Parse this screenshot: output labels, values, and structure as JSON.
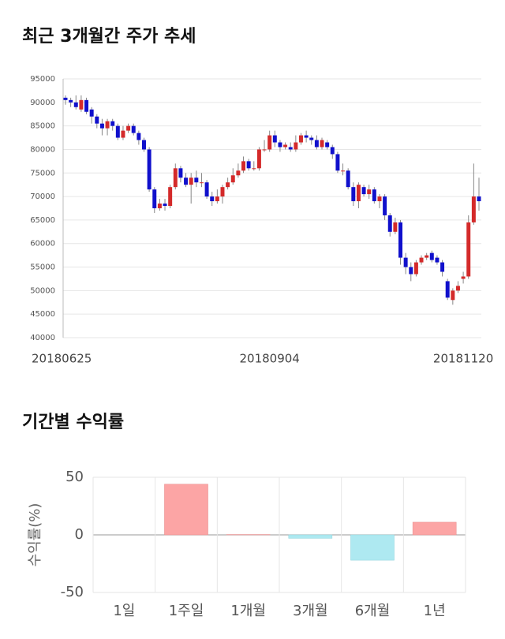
{
  "chart_data": [
    {
      "type": "candlestick",
      "title": "최근 3개월간 주가 추세",
      "categories": [
        "20180625",
        null,
        null,
        null,
        null,
        null,
        null,
        null,
        null,
        null,
        null,
        null,
        null,
        null,
        null,
        null,
        null,
        null,
        null,
        null,
        null,
        null,
        null,
        null,
        null,
        null,
        null,
        null,
        null,
        null,
        null,
        null,
        null,
        null,
        null,
        null,
        null,
        null,
        null,
        "20180904",
        null,
        null,
        null,
        null,
        null,
        null,
        null,
        null,
        null,
        null,
        null,
        null,
        null,
        null,
        null,
        null,
        null,
        null,
        null,
        null,
        null,
        null,
        null,
        null,
        null,
        null,
        null,
        null,
        null,
        null,
        null,
        null,
        null,
        null,
        null,
        null,
        "20181120",
        null,
        null,
        null
      ],
      "open": [
        91000,
        90500,
        90000,
        88500,
        90500,
        88500,
        87000,
        85500,
        84500,
        86000,
        85000,
        82500,
        84000,
        85000,
        83500,
        82000,
        80000,
        71500,
        67500,
        68500,
        68000,
        72000,
        76000,
        74000,
        72500,
        74000,
        73000,
        73000,
        70000,
        69000,
        70000,
        72000,
        73000,
        74500,
        75500,
        77500,
        76000,
        76000,
        80000,
        80000,
        83000,
        81500,
        80500,
        80500,
        80000,
        81500,
        83000,
        82500,
        82000,
        80500,
        81500,
        80500,
        79000,
        75500,
        75500,
        72000,
        69000,
        72000,
        70500,
        71500,
        69000,
        70000,
        66000,
        62500,
        64500,
        57000,
        55000,
        53500,
        56000,
        57000,
        58000,
        57000,
        56000,
        52000,
        48000,
        50000,
        52500,
        53000,
        64500,
        70000
      ],
      "high": [
        91500,
        91000,
        91500,
        91500,
        91000,
        89000,
        87500,
        86500,
        86500,
        86500,
        85500,
        85000,
        85500,
        85500,
        84000,
        82500,
        80500,
        72000,
        69500,
        69500,
        72500,
        77000,
        76500,
        75000,
        75000,
        75500,
        75000,
        73500,
        71000,
        71500,
        72500,
        74000,
        76000,
        77000,
        78500,
        78000,
        77500,
        80500,
        82000,
        84000,
        84000,
        82000,
        81500,
        81500,
        83000,
        83500,
        84000,
        83000,
        83000,
        82500,
        82000,
        81000,
        79500,
        77000,
        76000,
        73000,
        73000,
        72500,
        72500,
        72000,
        70500,
        70500,
        66500,
        65500,
        65000,
        58000,
        56000,
        56500,
        57500,
        58000,
        58500,
        57500,
        56500,
        52500,
        50500,
        52000,
        54000,
        66000,
        77000,
        74000
      ],
      "low": [
        89500,
        89000,
        88500,
        88000,
        87500,
        85500,
        84500,
        83000,
        83000,
        84000,
        82000,
        82000,
        83500,
        83000,
        81000,
        79500,
        71000,
        66500,
        67000,
        67000,
        67500,
        71500,
        73000,
        72000,
        68500,
        72000,
        72000,
        69500,
        68000,
        68500,
        68500,
        71500,
        72500,
        74000,
        75000,
        75500,
        75500,
        75500,
        79500,
        79500,
        80500,
        79500,
        80000,
        79500,
        79500,
        81000,
        81500,
        81000,
        80000,
        80000,
        80000,
        78000,
        75000,
        74500,
        71500,
        68000,
        67500,
        70000,
        69500,
        68500,
        67500,
        65000,
        61500,
        62000,
        55500,
        53500,
        52000,
        53000,
        55500,
        56500,
        56000,
        55500,
        53000,
        48000,
        47000,
        49500,
        51500,
        52500,
        64000,
        67000
      ],
      "close": [
        90500,
        90000,
        89000,
        90500,
        88000,
        87000,
        85500,
        84500,
        86000,
        85000,
        82500,
        84000,
        85000,
        83500,
        82000,
        80000,
        71500,
        67500,
        68500,
        68000,
        72000,
        76000,
        74000,
        72500,
        74000,
        73000,
        73000,
        70000,
        69000,
        70000,
        72000,
        73000,
        74500,
        75500,
        77500,
        76000,
        76000,
        80000,
        80000,
        83000,
        81500,
        80500,
        81000,
        80000,
        81500,
        83000,
        82500,
        82000,
        80500,
        82000,
        80500,
        79000,
        75500,
        75500,
        72000,
        69000,
        72500,
        70500,
        71500,
        69000,
        70000,
        66000,
        62500,
        64500,
        57000,
        55000,
        53500,
        56000,
        57000,
        57500,
        56500,
        56000,
        54000,
        48500,
        50000,
        51000,
        53000,
        64500,
        70000,
        69000
      ],
      "up_color": "#d42a2a",
      "down_color": "#1010cc",
      "ylim": [
        40000,
        95000
      ],
      "yticks": [
        40000,
        45000,
        50000,
        55000,
        60000,
        65000,
        70000,
        75000,
        80000,
        85000,
        90000,
        95000
      ],
      "grid": true
    },
    {
      "type": "bar",
      "title": "기간별 수익률",
      "ylabel": "수익률(%)",
      "categories": [
        "1일",
        "1주일",
        "1개월",
        "3개월",
        "6개월",
        "1년"
      ],
      "values": [
        0,
        44,
        0.3,
        -3,
        -22,
        11
      ],
      "positive_color": "#fca5a5",
      "negative_color": "#aee9f1",
      "ylim": [
        -50,
        50
      ],
      "yticks": [
        -50,
        0,
        50
      ],
      "grid": true
    }
  ]
}
